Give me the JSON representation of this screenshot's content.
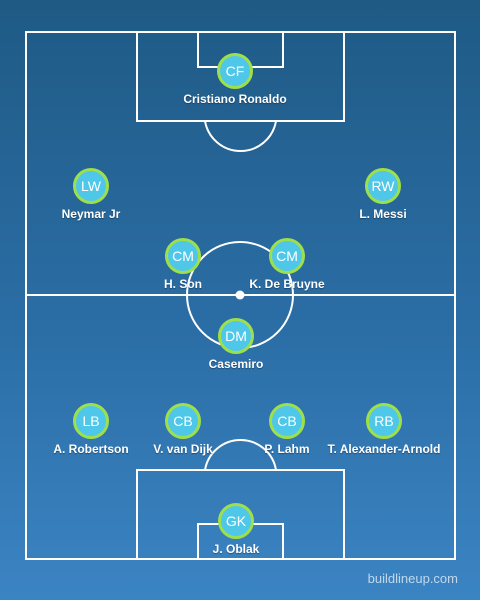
{
  "pitch": {
    "colors": {
      "line": "#ffffff",
      "token_fill": "#4fc7e9",
      "token_ring": "#9fe04a"
    }
  },
  "players": {
    "cf": {
      "position": "CF",
      "name": "Cristiano Ronaldo"
    },
    "lw": {
      "position": "LW",
      "name": "Neymar Jr"
    },
    "rw": {
      "position": "RW",
      "name": "L. Messi"
    },
    "cm_left": {
      "position": "CM",
      "name": "H. Son"
    },
    "cm_right": {
      "position": "CM",
      "name": "K. De Bruyne"
    },
    "dm": {
      "position": "DM",
      "name": "Casemiro"
    },
    "lb": {
      "position": "LB",
      "name": "A. Robertson"
    },
    "cb_left": {
      "position": "CB",
      "name": "V. van Dijk"
    },
    "cb_right": {
      "position": "CB",
      "name": "P. Lahm"
    },
    "rb": {
      "position": "RB",
      "name": "T. Alexander-Arnold"
    },
    "gk": {
      "position": "GK",
      "name": "J. Oblak"
    }
  },
  "watermark": "buildlineup.com"
}
